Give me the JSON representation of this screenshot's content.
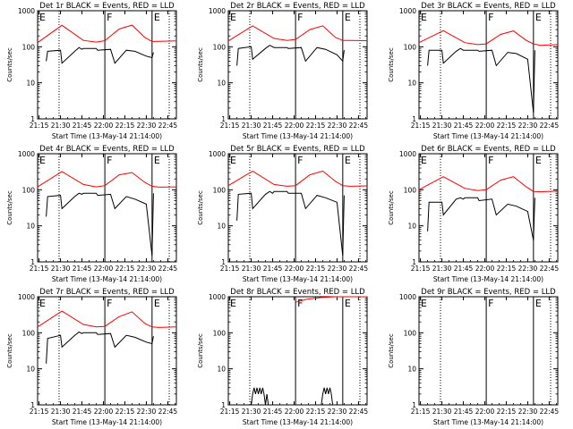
{
  "figure": {
    "common": {
      "xlabel": "Start Time (13-May-14 21:14:00)",
      "ylabel": "Counts/sec",
      "x_tick_labels": [
        "21:15",
        "21:30",
        "21:45",
        "22:00",
        "22:15",
        "22:30",
        "22:45"
      ],
      "y_tick_labels": [
        "1",
        "10",
        "100",
        "1000"
      ],
      "segment_markers": [
        "E",
        "F",
        "E"
      ]
    },
    "colors": {
      "events": "#000000",
      "lld": "#ff0000",
      "axes": "#000000",
      "background": "#ffffff"
    }
  },
  "chart_data": [
    {
      "type": "line",
      "title": "Det 1r BLACK = Events, RED = LLD",
      "xlabel": "Start Time (13-May-14 21:14:00)",
      "ylabel": "Counts/sec",
      "x_unit": "minutes after 21:14:00",
      "xlim": [
        0,
        97
      ],
      "ylim": [
        1,
        1000
      ],
      "y_scale": "log",
      "series": [
        {
          "name": "LLD",
          "color": "#ff0000",
          "x": [
            0,
            17,
            32,
            41,
            47,
            57,
            66,
            75,
            80,
            85,
            97
          ],
          "values": [
            130,
            395,
            150,
            135,
            148,
            310,
            400,
            180,
            140,
            142,
            145
          ]
        },
        {
          "name": "Events",
          "color": "#000000",
          "x": [
            6,
            7,
            16,
            17,
            26,
            29,
            31,
            32,
            41,
            42,
            51,
            54,
            62,
            68,
            76,
            80,
            81
          ],
          "values": [
            40,
            75,
            80,
            35,
            75,
            95,
            85,
            90,
            90,
            80,
            85,
            35,
            80,
            75,
            55,
            50,
            70
          ]
        }
      ]
    },
    {
      "type": "line",
      "title": "Det 2r BLACK = Events, RED = LLD",
      "xlabel": "Start Time (13-May-14 21:14:00)",
      "ylabel": "Counts/sec",
      "x_unit": "minutes after 21:14:00",
      "xlim": [
        0,
        97
      ],
      "ylim": [
        1,
        1000
      ],
      "y_scale": "log",
      "series": [
        {
          "name": "LLD",
          "color": "#ff0000",
          "x": [
            0,
            17,
            32,
            41,
            47,
            57,
            66,
            75,
            80,
            85,
            97
          ],
          "values": [
            145,
            380,
            170,
            150,
            160,
            300,
            380,
            180,
            150,
            150,
            148
          ]
        },
        {
          "name": "Events",
          "color": "#000000",
          "x": [
            6,
            7,
            16,
            17,
            26,
            29,
            31,
            32,
            41,
            42,
            51,
            54,
            62,
            68,
            76,
            80,
            81
          ],
          "values": [
            30,
            90,
            100,
            45,
            90,
            110,
            100,
            95,
            95,
            90,
            95,
            40,
            95,
            85,
            60,
            40,
            80
          ]
        }
      ]
    },
    {
      "type": "line",
      "title": "Det 3r BLACK = Events, RED = LLD",
      "xlabel": "Start Time (13-May-14 21:14:00)",
      "ylabel": "Counts/sec",
      "x_unit": "minutes after 21:14:00",
      "xlim": [
        0,
        97
      ],
      "ylim": [
        1,
        1000
      ],
      "y_scale": "log",
      "series": [
        {
          "name": "LLD",
          "color": "#ff0000",
          "x": [
            0,
            17,
            32,
            41,
            47,
            57,
            66,
            75,
            80,
            85,
            97
          ],
          "values": [
            130,
            280,
            130,
            115,
            120,
            220,
            275,
            150,
            120,
            110,
            115
          ]
        },
        {
          "name": "Events",
          "color": "#000000",
          "x": [
            6,
            7,
            16,
            17,
            26,
            29,
            31,
            32,
            41,
            42,
            51,
            54,
            62,
            68,
            76,
            80,
            81
          ],
          "values": [
            30,
            80,
            80,
            35,
            75,
            90,
            80,
            80,
            80,
            75,
            80,
            30,
            70,
            65,
            45,
            1.5,
            80
          ]
        }
      ]
    },
    {
      "type": "line",
      "title": "Det 4r BLACK = Events, RED = LLD",
      "xlabel": "Start Time (13-May-14 21:14:00)",
      "ylabel": "Counts/sec",
      "x_unit": "minutes after 21:14:00",
      "xlim": [
        0,
        97
      ],
      "ylim": [
        1,
        1000
      ],
      "y_scale": "log",
      "series": [
        {
          "name": "LLD",
          "color": "#ff0000",
          "x": [
            0,
            17,
            32,
            41,
            47,
            57,
            66,
            75,
            80,
            85,
            97
          ],
          "values": [
            120,
            320,
            140,
            120,
            130,
            260,
            300,
            160,
            125,
            118,
            120
          ]
        },
        {
          "name": "Events",
          "color": "#000000",
          "x": [
            6,
            7,
            16,
            17,
            26,
            29,
            31,
            32,
            41,
            42,
            51,
            54,
            62,
            68,
            76,
            80,
            81
          ],
          "values": [
            18,
            65,
            70,
            30,
            65,
            80,
            75,
            80,
            80,
            70,
            75,
            30,
            65,
            55,
            40,
            1.5,
            80
          ]
        }
      ]
    },
    {
      "type": "line",
      "title": "Det 5r BLACK = Events, RED = LLD",
      "xlabel": "Start Time (13-May-14 21:14:00)",
      "ylabel": "Counts/sec",
      "x_unit": "minutes after 21:14:00",
      "xlim": [
        0,
        97
      ],
      "ylim": [
        1,
        1000
      ],
      "y_scale": "log",
      "series": [
        {
          "name": "LLD",
          "color": "#ff0000",
          "x": [
            0,
            17,
            32,
            41,
            47,
            57,
            66,
            75,
            80,
            85,
            97
          ],
          "values": [
            130,
            330,
            140,
            125,
            130,
            260,
            330,
            170,
            130,
            125,
            128
          ]
        },
        {
          "name": "Events",
          "color": "#000000",
          "x": [
            6,
            7,
            16,
            17,
            26,
            29,
            31,
            32,
            41,
            42,
            51,
            54,
            62,
            68,
            76,
            80,
            81
          ],
          "values": [
            14,
            75,
            80,
            30,
            75,
            90,
            80,
            90,
            90,
            80,
            80,
            30,
            70,
            60,
            45,
            1.5,
            70
          ]
        }
      ]
    },
    {
      "type": "line",
      "title": "Det 6r BLACK = Events, RED = LLD",
      "xlabel": "Start Time (13-May-14 21:14:00)",
      "ylabel": "Counts/sec",
      "x_unit": "minutes after 21:14:00",
      "xlim": [
        0,
        97
      ],
      "ylim": [
        1,
        1000
      ],
      "y_scale": "log",
      "series": [
        {
          "name": "LLD",
          "color": "#ff0000",
          "x": [
            0,
            17,
            32,
            41,
            47,
            57,
            66,
            75,
            80,
            85,
            97
          ],
          "values": [
            100,
            230,
            110,
            95,
            100,
            185,
            230,
            120,
            90,
            88,
            92
          ]
        },
        {
          "name": "Events",
          "color": "#000000",
          "x": [
            6,
            7,
            16,
            17,
            26,
            29,
            31,
            32,
            41,
            42,
            51,
            54,
            62,
            68,
            76,
            80,
            81
          ],
          "values": [
            7,
            45,
            45,
            20,
            55,
            60,
            55,
            60,
            60,
            50,
            55,
            20,
            40,
            35,
            25,
            4,
            60
          ]
        }
      ]
    },
    {
      "type": "line",
      "title": "Det 7r BLACK = Events, RED = LLD",
      "xlabel": "Start Time (13-May-14 21:14:00)",
      "ylabel": "Counts/sec",
      "x_unit": "minutes after 21:14:00",
      "xlim": [
        0,
        97
      ],
      "ylim": [
        1,
        1000
      ],
      "y_scale": "log",
      "series": [
        {
          "name": "LLD",
          "color": "#ff0000",
          "x": [
            0,
            17,
            32,
            41,
            47,
            57,
            66,
            75,
            80,
            85,
            97
          ],
          "values": [
            145,
            400,
            170,
            145,
            150,
            280,
            380,
            180,
            145,
            140,
            145
          ]
        },
        {
          "name": "Events",
          "color": "#000000",
          "x": [
            6,
            7,
            16,
            17,
            26,
            29,
            31,
            32,
            41,
            42,
            51,
            54,
            62,
            68,
            76,
            80,
            81
          ],
          "values": [
            14,
            70,
            85,
            40,
            85,
            105,
            95,
            100,
            100,
            90,
            95,
            40,
            85,
            75,
            55,
            50,
            80
          ]
        }
      ]
    },
    {
      "type": "line",
      "title": "Det 8r BLACK = Events, RED = LLD",
      "xlabel": "Start Time (13-May-14 21:14:00)",
      "ylabel": "Counts/sec",
      "x_unit": "minutes after 21:14:00",
      "xlim": [
        0,
        97
      ],
      "ylim": [
        1,
        1000
      ],
      "y_scale": "log",
      "series": [
        {
          "name": "LLD",
          "color": "#ff0000",
          "x": [
            47,
            55,
            65,
            75,
            80,
            90,
            97
          ],
          "values": [
            700,
            850,
            950,
            1000,
            1000,
            1000,
            1000
          ]
        },
        {
          "name": "Events",
          "color": "#000000",
          "x": [
            16,
            17,
            18,
            19,
            20,
            21,
            22,
            23,
            24,
            25,
            26,
            27,
            28,
            65,
            66,
            67,
            68,
            69,
            70,
            71,
            72,
            73
          ],
          "values": [
            1,
            2,
            3,
            2,
            3,
            2,
            3,
            2,
            3,
            2,
            1,
            2,
            1,
            1,
            2,
            3,
            2,
            3,
            2,
            3,
            2,
            1
          ]
        }
      ]
    },
    {
      "type": "line",
      "title": "Det 9r BLACK = Events, RED = LLD",
      "xlabel": "Start Time (13-May-14 21:14:00)",
      "ylabel": "Counts/sec",
      "x_unit": "minutes after 21:14:00",
      "xlim": [
        0,
        97
      ],
      "ylim": [
        1,
        1000
      ],
      "y_scale": "log",
      "series": []
    }
  ]
}
